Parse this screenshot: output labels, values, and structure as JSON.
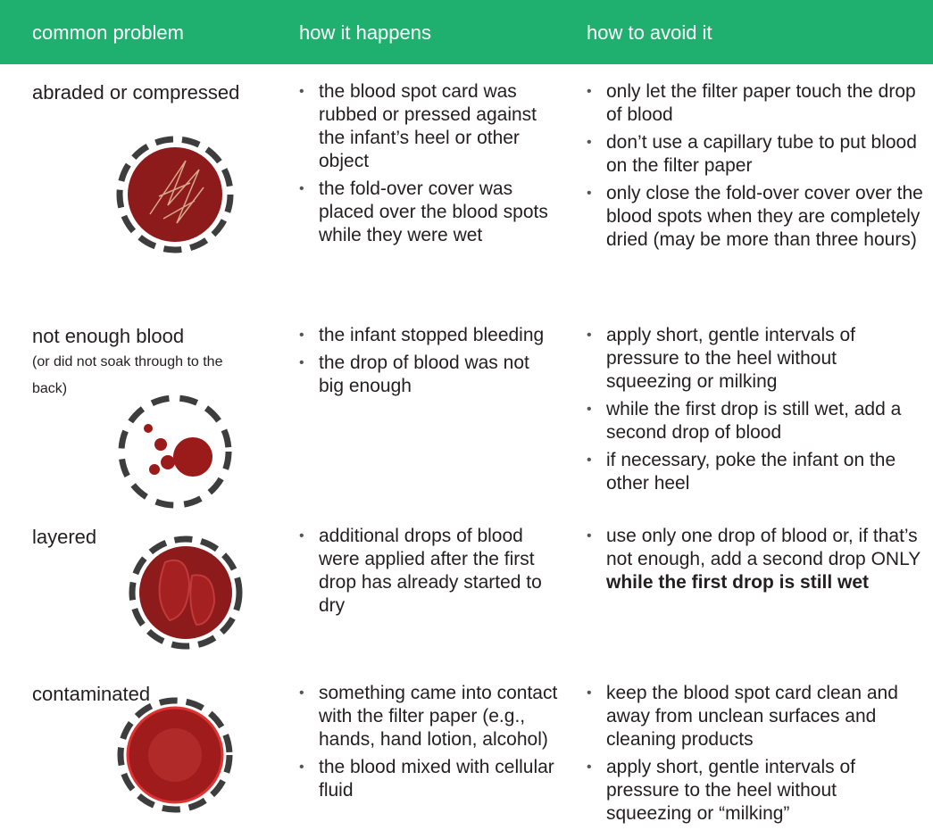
{
  "header": {
    "columns": [
      "common problem",
      "how it happens",
      "how to avoid it"
    ]
  },
  "rows": [
    {
      "problem": "abraded or compressed",
      "causes": [
        "the blood spot card was rubbed or pressed against the infant’s heel or other object",
        "the fold-over cover was placed over the blood spots while they were wet"
      ],
      "fixes": [
        "only let the filter paper touch the drop of blood",
        "don’t use a capillary tube to put blood on the filter paper",
        "only close the fold-over cover over the blood spots when they are completely dried (may be more than three hours)"
      ]
    },
    {
      "problem": "not enough blood",
      "note": "(or did not soak through to the back)",
      "causes": [
        "the infant stopped bleeding",
        "the drop of blood was not big enough"
      ],
      "fixes": [
        "apply short, gentle intervals of pressure to the heel without squeezing or milking",
        "while the first drop is still wet, add a second drop of blood",
        "if necessary, poke the infant on the other heel"
      ]
    },
    {
      "problem": "layered",
      "causes": [
        "additional drops of blood were applied after the first drop has already started to dry"
      ],
      "fixes": [
        {
          "text": "use only one drop of blood or, if that’s not enough, add a second drop ONLY",
          "bold": "while the first drop is still wet"
        }
      ]
    },
    {
      "problem": "contaminated",
      "causes": [
        "something came into contact with the filter paper (e.g., hands, hand lotion, alcohol)",
        "the blood mixed with cellular fluid"
      ],
      "fixes": [
        "keep the blood spot card clean and away from unclean surfaces and cleaning products",
        "apply short, gentle intervals of pressure to the heel without squeezing or “milking”"
      ]
    }
  ]
}
